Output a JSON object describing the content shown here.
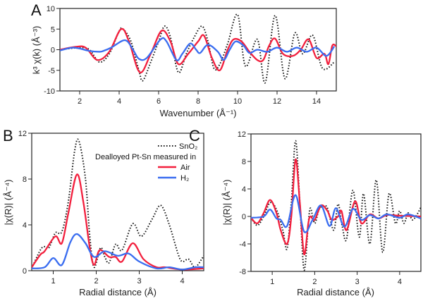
{
  "colors": {
    "SnO2": "#111111",
    "Air": "#f21f3d",
    "H2": "#3a6df0"
  },
  "legend": {
    "sno2": "SnO₂",
    "header": "Dealloyed Pt-Sn measured in",
    "air": "Air",
    "h2": "H₂",
    "placement": "top-right of panel B"
  },
  "chart_data": [
    {
      "panel": "A",
      "type": "line",
      "xlabel": "Wavenumber  (Å⁻¹)",
      "ylabel": "k³ χ(k)  (Å⁻³)",
      "xlim": [
        1,
        15
      ],
      "ylim": [
        -10,
        10
      ],
      "xticks": [
        "2",
        "4",
        "6",
        "8",
        "10",
        "12",
        "14"
      ],
      "yticks": [
        "-10",
        "-5",
        "0",
        "5",
        "10"
      ],
      "series": [
        {
          "name": "SnO₂",
          "style": "dotted",
          "x": [
            1,
            2,
            2.5,
            3,
            3.5,
            4,
            4.2,
            4.6,
            5,
            5.2,
            5.6,
            6,
            6.3,
            6.6,
            7,
            7.4,
            7.8,
            8.2,
            8.5,
            8.8,
            9.1,
            9.5,
            10,
            10.4,
            11,
            11.4,
            11.9,
            12.4,
            12.9,
            13.3,
            13.8,
            14.3,
            14.9
          ],
          "y": [
            0,
            0.5,
            0,
            -3,
            -1,
            4.5,
            5,
            2,
            -5,
            -7.5,
            -3,
            2,
            5.7,
            3,
            -5.5,
            -1,
            3,
            5.7,
            2,
            -4.5,
            -3.5,
            1.5,
            8.5,
            -4,
            2.5,
            -8,
            8.3,
            -7,
            4,
            -1,
            3.5,
            -4.5,
            -3
          ]
        },
        {
          "name": "Air",
          "style": "solid",
          "x": [
            1,
            1.8,
            2.3,
            2.9,
            3.5,
            4.1,
            4.5,
            5.05,
            5.6,
            6.15,
            6.6,
            7,
            7.5,
            8,
            8.3,
            8.7,
            9.1,
            9.5,
            9.8,
            10.2,
            10.6,
            11,
            11.3,
            11.6,
            11.9,
            12.3,
            12.8,
            13.2,
            13.6,
            14,
            14.4,
            14.6,
            14.8,
            15
          ],
          "y": [
            0,
            0.7,
            0.5,
            -2.5,
            -0.5,
            5,
            2,
            -5.5,
            -1,
            4.6,
            2,
            -3.5,
            -1,
            2,
            3.4,
            -2,
            -5,
            0,
            2.5,
            2,
            -0.5,
            -2.5,
            -2.5,
            1,
            2.7,
            -1,
            -1.5,
            0,
            2.5,
            -2,
            -1,
            -3.5,
            1,
            0.8
          ]
        },
        {
          "name": "H₂",
          "style": "solid",
          "x": [
            1,
            1.7,
            2.5,
            3,
            3.2,
            3.6,
            4.3,
            4.7,
            5,
            5.4,
            6.1,
            6.4,
            6.9,
            7.2,
            7.6,
            7.9,
            8.1,
            8.5,
            9,
            9.3,
            9.6,
            9.9,
            10.3,
            10.6,
            11,
            11.5,
            12,
            12.5,
            13,
            13.5,
            14,
            14.5,
            14.9
          ],
          "y": [
            -0.2,
            0.5,
            -0.3,
            -0.5,
            -0.3,
            0.5,
            2.3,
            0,
            -2.2,
            -2,
            2.5,
            2,
            -2.5,
            -1,
            1.5,
            0,
            -0.8,
            1.2,
            -0.5,
            -2.5,
            0,
            2,
            1,
            -0.8,
            0,
            -0.5,
            0.5,
            -0.5,
            0.5,
            -0.5,
            0.5,
            -1.5,
            0.8
          ]
        }
      ]
    },
    {
      "panel": "B",
      "type": "line",
      "xlabel": "Radial distance  (Å)",
      "ylabel": "|χ(R)|  (Å⁻⁴)",
      "xlim": [
        0.5,
        4.5
      ],
      "ylim": [
        0,
        12
      ],
      "xticks": [
        "1",
        "2",
        "3",
        "4"
      ],
      "yticks": [
        "0",
        "4",
        "8",
        "12"
      ],
      "series": [
        {
          "name": "SnO₂",
          "style": "dotted",
          "x": [
            0.5,
            0.7,
            0.8,
            0.9,
            1.05,
            1.2,
            1.35,
            1.5,
            1.6,
            1.75,
            1.85,
            1.95,
            2.1,
            2.2,
            2.3,
            2.45,
            2.6,
            2.85,
            3.05,
            3.3,
            3.5,
            3.7,
            3.9,
            4.0,
            4.15,
            4.3,
            4.5
          ],
          "y": [
            0.2,
            1.8,
            2.1,
            2,
            3.3,
            3.4,
            6,
            10.5,
            11.3,
            8,
            3,
            0.3,
            2,
            1.2,
            0.7,
            2.3,
            1.8,
            4.1,
            3,
            4.5,
            5.7,
            4,
            1.5,
            0.8,
            1,
            0.3,
            1.3
          ]
        },
        {
          "name": "Air",
          "style": "solid",
          "x": [
            0.5,
            0.7,
            0.8,
            1.05,
            1.2,
            1.35,
            1.55,
            1.7,
            1.85,
            1.95,
            2.08,
            2.3,
            2.45,
            2.6,
            2.85,
            3.1,
            3.4,
            3.6,
            4,
            4.5
          ],
          "y": [
            0.3,
            1.4,
            1.7,
            3,
            2.4,
            5,
            8.4,
            6,
            2,
            0.5,
            1.8,
            1.2,
            1.2,
            0.8,
            2.4,
            1,
            0.3,
            0.3,
            0.1,
            0.2
          ]
        },
        {
          "name": "H₂",
          "style": "solid",
          "x": [
            0.5,
            0.8,
            1,
            1.2,
            1.4,
            1.55,
            1.75,
            1.95,
            2.2,
            2.5,
            2.75,
            3,
            3.4,
            3.7,
            4,
            4.3,
            4.5
          ],
          "y": [
            0.2,
            0.3,
            1.1,
            0.5,
            2.5,
            3.2,
            2.4,
            1.2,
            1.7,
            1.3,
            1.5,
            0.8,
            0.2,
            0.3,
            0.1,
            0.3,
            0.3
          ]
        }
      ]
    },
    {
      "panel": "C",
      "type": "line",
      "xlabel": "Radial distance  (Å)",
      "ylabel": "|χ(R)|  (Å⁻⁴)",
      "xlim": [
        0.5,
        4.5
      ],
      "ylim": [
        -8,
        12
      ],
      "xticks": [
        "1",
        "2",
        "3",
        "4"
      ],
      "yticks": [
        "-8",
        "-4",
        "0",
        "4",
        "8",
        "12"
      ],
      "series": [
        {
          "name": "SnO₂",
          "style": "dotted",
          "x": [
            0.5,
            0.65,
            0.8,
            0.95,
            1.1,
            1.25,
            1.35,
            1.45,
            1.55,
            1.65,
            1.75,
            1.85,
            1.9,
            2,
            2.1,
            2.2,
            2.3,
            2.45,
            2.55,
            2.65,
            2.75,
            2.9,
            3.05,
            3.15,
            3.3,
            3.45,
            3.6,
            3.75,
            3.9,
            4,
            4.1,
            4.2,
            4.3,
            4.4,
            4.5
          ],
          "y": [
            -0.2,
            -1.3,
            0,
            2,
            1,
            -2,
            -4.7,
            2,
            11,
            2,
            -7.8,
            -1,
            1.2,
            -1,
            1,
            1.5,
            1.2,
            -2,
            1.8,
            -1.5,
            -3.3,
            3.8,
            -3,
            3.3,
            -4,
            5.3,
            -5.2,
            3.3,
            -1,
            0.8,
            -1,
            0.5,
            -0.5,
            0.2,
            1.3
          ]
        },
        {
          "name": "Air",
          "style": "solid",
          "x": [
            0.5,
            0.65,
            0.8,
            0.95,
            1.1,
            1.2,
            1.35,
            1.45,
            1.55,
            1.65,
            1.75,
            1.85,
            1.9,
            2,
            2.15,
            2.3,
            2.4,
            2.55,
            2.63,
            2.75,
            2.95,
            3.1,
            3.3,
            3.5,
            3.7,
            4,
            4.5
          ],
          "y": [
            -0.2,
            -1,
            0.5,
            2.4,
            0.5,
            -2,
            -4,
            0,
            8.3,
            2,
            -5.5,
            -1,
            0,
            -0.5,
            1.6,
            0.8,
            -0.5,
            0,
            0.8,
            -2,
            2.2,
            -1,
            0.3,
            -0.3,
            0.2,
            0.1,
            0
          ]
        },
        {
          "name": "H₂",
          "style": "solid",
          "x": [
            0.5,
            0.8,
            0.95,
            1.1,
            1.2,
            1.35,
            1.55,
            1.75,
            1.95,
            2.15,
            2.35,
            2.5,
            2.7,
            2.9,
            3.1,
            3.3,
            3.5,
            3.7,
            4,
            4.2,
            4.5
          ],
          "y": [
            -0.2,
            0,
            1,
            -0.3,
            -0.5,
            -1.4,
            3.1,
            -2.2,
            -0.5,
            1.6,
            -1.4,
            1.2,
            -1.5,
            1.1,
            -0.5,
            0.2,
            -0.3,
            0.3,
            -0.2,
            0.3,
            -0.3
          ]
        }
      ]
    }
  ]
}
